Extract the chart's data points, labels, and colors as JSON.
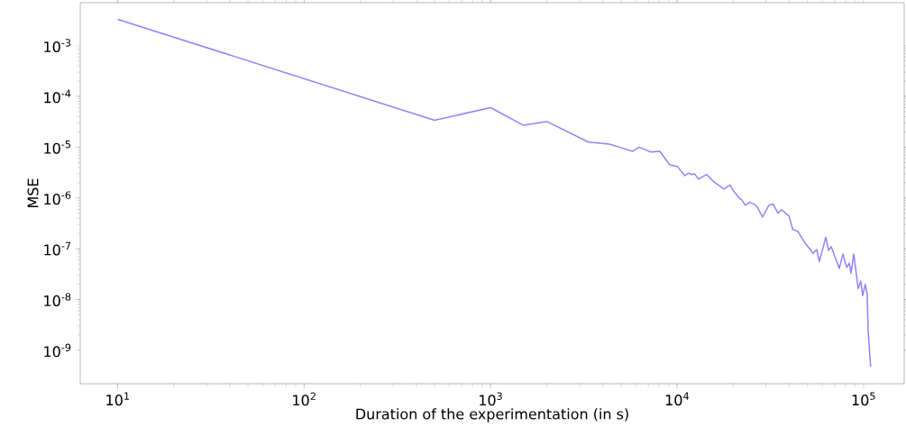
{
  "chart_data": {
    "type": "line",
    "xlabel": "Duration of the experimentation (in s)",
    "ylabel": "MSE",
    "log": "xy",
    "marker": "none",
    "color": "#9580ff",
    "xlim": [
      6.3,
      165000
    ],
    "ylim": [
      2.2e-10,
      0.007
    ],
    "xticks": [
      {
        "value": 10,
        "label": "10$^{1}$"
      },
      {
        "value": 100,
        "label": "10$^{2}$"
      },
      {
        "value": 1000,
        "label": "10$^{3}$"
      },
      {
        "value": 10000,
        "label": "10$^{4}$"
      },
      {
        "value": 100000,
        "label": "10$^{5}$"
      }
    ],
    "yticks": [
      {
        "value": 1e-09,
        "label": "10$^{-9}$"
      },
      {
        "value": 1e-08,
        "label": "10$^{-8}$"
      },
      {
        "value": 1e-07,
        "label": "10$^{-7}$"
      },
      {
        "value": 1e-06,
        "label": "10$^{-6}$"
      },
      {
        "value": 1e-05,
        "label": "10$^{-5}$"
      },
      {
        "value": 0.0001,
        "label": "10$^{-4}$"
      },
      {
        "value": 0.001,
        "label": "10$^{-3}$"
      }
    ],
    "x": [
      10,
      500,
      1000,
      1500,
      2000,
      3350,
      4330,
      4900,
      5780,
      6250,
      7250,
      8080,
      9120,
      10000,
      11000,
      11500,
      12000,
      12400,
      13000,
      14400,
      15700,
      17800,
      19200,
      20000,
      21500,
      22200,
      23200,
      24500,
      26000,
      26900,
      28700,
      31000,
      32800,
      34700,
      36300,
      39800,
      41700,
      44400,
      48500,
      53600,
      56000,
      57900,
      62700,
      64800,
      67000,
      74000,
      77400,
      81000,
      83700,
      85600,
      88500,
      93500,
      96600,
      98900,
      102000,
      104500,
      105700,
      109000
    ],
    "values": [
      0.0033,
      3.4e-05,
      6e-05,
      2.7e-05,
      3.2e-05,
      1.26e-05,
      1.15e-05,
      1e-05,
      8.3e-06,
      1e-05,
      8e-06,
      8.3e-06,
      4.5e-06,
      4.2e-06,
      2.75e-06,
      3.1e-06,
      2.9e-06,
      3e-06,
      2.35e-06,
      2.9e-06,
      2.1e-06,
      1.5e-06,
      1.8e-06,
      1.4e-06,
      1e-06,
      9.2e-07,
      7.2e-07,
      8.2e-07,
      7.5e-07,
      6.6e-07,
      4.2e-07,
      7.2e-07,
      7.5e-07,
      5e-07,
      5.9e-07,
      4.4e-07,
      2.4e-07,
      2.2e-07,
      1.3e-07,
      8.1e-08,
      9.7e-08,
      5.6e-08,
      1.7e-07,
      9.3e-08,
      1.1e-07,
      4.1e-08,
      7.9e-08,
      4.3e-08,
      5.2e-08,
      3.3e-08,
      7.9e-08,
      1.65e-08,
      2.3e-08,
      1.2e-08,
      2e-08,
      1.25e-08,
      2.5e-09,
      4.8e-10
    ]
  }
}
